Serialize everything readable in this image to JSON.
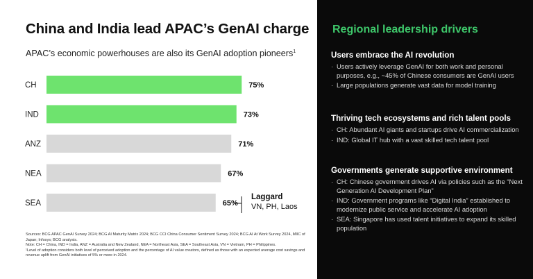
{
  "header": {
    "title": "China and India lead APAC’s GenAI charge",
    "subtitle": "APAC’s economic powerhouses are also its GenAI adoption pioneers",
    "subtitle_ref": "1"
  },
  "chart_data": {
    "type": "bar",
    "orientation": "horizontal",
    "categories": [
      "CH",
      "IND",
      "ANZ",
      "NEA",
      "SEA"
    ],
    "values": [
      75,
      73,
      71,
      67,
      65
    ],
    "value_labels": [
      "75%",
      "73%",
      "71%",
      "67%",
      "65%"
    ],
    "highlighted": [
      true,
      true,
      false,
      false,
      false
    ],
    "colors": {
      "highlight": "#6ee36e",
      "default": "#d8d8d8"
    },
    "xlim": [
      0,
      100
    ],
    "annotation": {
      "title": "Laggard",
      "text": "VN, PH, Laos"
    }
  },
  "footnotes": [
    "Sources: BCG APAC GenAI Survey 2024; BCG AI Maturity Matrix 2024; BCG CCI China Consumer Sentiment Survey 2024; BCG AI At Work Survey 2024, MIIC of Japan; Infosys; BCG analysis.",
    "Note: CH = China, IND = India, ANZ = Australia and New Zealand, NEA = Northeast Asia, SEA = Southeast Asia, VN = Vietnam, PH = Philippines.",
    "¹Level of adoption considers both level of perceived adoption and the percentage of AI value creators, defined as those with an expected average cost savings and revenue uplift from GenAI initiatives of 5% or more in 2024."
  ],
  "panel": {
    "title": "Regional leadership drivers",
    "title_color": "#3ec76a",
    "sections": [
      {
        "heading": "Users embrace the AI revolution",
        "bullets": [
          "Users actively leverage GenAI for both work and personal purposes, e.g., ~45% of Chinese consumers are GenAI users",
          "Large populations generate vast data for model training"
        ]
      },
      {
        "heading": "Thriving tech ecosystems and rich talent pools",
        "bullets": [
          "CH: Abundant AI giants and startups drive AI commercialization",
          "IND: Global IT hub with a vast skilled tech talent pool"
        ]
      },
      {
        "heading": "Governments generate supportive environment",
        "bullets": [
          "CH: Chinese government drives AI via policies such as the “Next Generation AI Development Plan”",
          "IND: Government programs like “Digital India” established to modernize public service and accelerate AI adoption",
          "SEA: Singapore has used talent initiatives to expand its skilled population"
        ]
      }
    ]
  }
}
